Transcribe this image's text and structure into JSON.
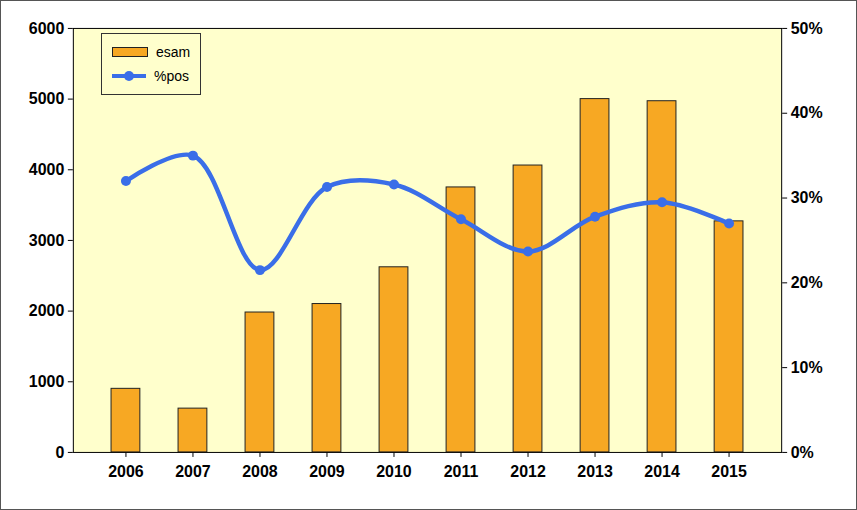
{
  "chart_data": {
    "type": "bar",
    "categories": [
      "2006",
      "2007",
      "2008",
      "2009",
      "2010",
      "2011",
      "2012",
      "2013",
      "2014",
      "2015"
    ],
    "series": [
      {
        "name": "esam",
        "type": "bar",
        "color": "#f7a823",
        "values": [
          900,
          620,
          1980,
          2100,
          2620,
          3750,
          4060,
          5000,
          4970,
          3270
        ]
      },
      {
        "name": "%pos",
        "type": "line",
        "axis": "y2",
        "color": "#3a6ee8",
        "marker": "circle",
        "values": [
          32,
          35,
          21.5,
          31.3,
          31.6,
          27.5,
          23.7,
          27.8,
          29.5,
          27
        ]
      }
    ],
    "ylim": [
      0,
      6000
    ],
    "yticks": [
      0,
      1000,
      2000,
      3000,
      4000,
      5000,
      6000
    ],
    "y2lim": [
      0,
      50
    ],
    "y2ticks": [
      {
        "value": 0,
        "label": "0%"
      },
      {
        "value": 10,
        "label": "10%"
      },
      {
        "value": 20,
        "label": "20%"
      },
      {
        "value": 30,
        "label": "30%"
      },
      {
        "value": 40,
        "label": "40%"
      },
      {
        "value": 50,
        "label": "50%"
      }
    ],
    "legend": "top-left"
  }
}
